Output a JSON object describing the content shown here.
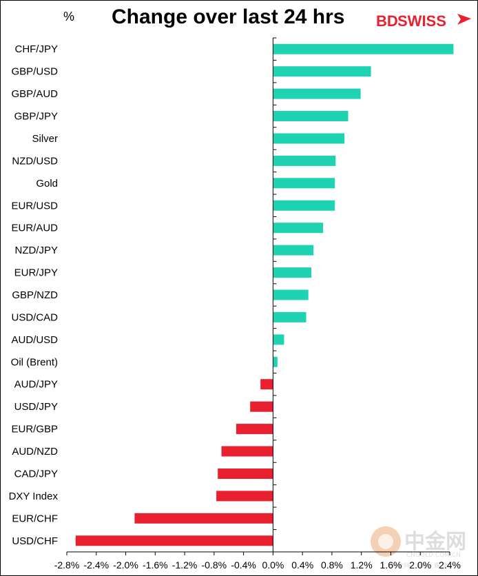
{
  "chart_data": {
    "type": "bar",
    "orientation": "horizontal",
    "title": "Change over last 24 hrs",
    "unit_label": "%",
    "categories": [
      "CHF/JPY",
      "GBP/USD",
      "GBP/AUD",
      "GBP/JPY",
      "Silver",
      "NZD/USD",
      "Gold",
      "EUR/USD",
      "EUR/AUD",
      "NZD/JPY",
      "EUR/JPY",
      "GBP/NZD",
      "USD/CAD",
      "AUD/USD",
      "Oil (Brent)",
      "AUD/JPY",
      "USD/JPY",
      "EUR/GBP",
      "AUD/NZD",
      "CAD/JPY",
      "DXY Index",
      "EUR/CHF",
      "USD/CHF"
    ],
    "values": [
      2.45,
      1.33,
      1.19,
      1.02,
      0.97,
      0.85,
      0.84,
      0.84,
      0.68,
      0.55,
      0.52,
      0.48,
      0.45,
      0.15,
      0.06,
      -0.17,
      -0.31,
      -0.5,
      -0.7,
      -0.75,
      -0.77,
      -1.88,
      -2.68
    ],
    "xlim": [
      -2.8,
      2.4
    ],
    "x_ticks": [
      "-2.8%",
      "-2.4%",
      "-2.0%",
      "-1.6%",
      "-1.2%",
      "-0.8%",
      "-0.4%",
      "0.0%",
      "0.4%",
      "0.8%",
      "1.2%",
      "1.6%",
      "2.0%",
      "2.4%"
    ],
    "x_tick_values": [
      -2.8,
      -2.4,
      -2.0,
      -1.6,
      -1.2,
      -0.8,
      -0.4,
      0.0,
      0.4,
      0.8,
      1.2,
      1.6,
      2.0,
      2.4
    ],
    "grid": false,
    "colors": {
      "positive": "#1ED3B2",
      "negative": "#E8202F"
    }
  },
  "logo": {
    "part1": "BD",
    "part2": "SWISS",
    "color": "#E8202F"
  },
  "watermark": {
    "text": "中金网",
    "url": "CNGOLD.COM.CN",
    "subtitle": "中金网 · 金融 · 媒 体"
  }
}
